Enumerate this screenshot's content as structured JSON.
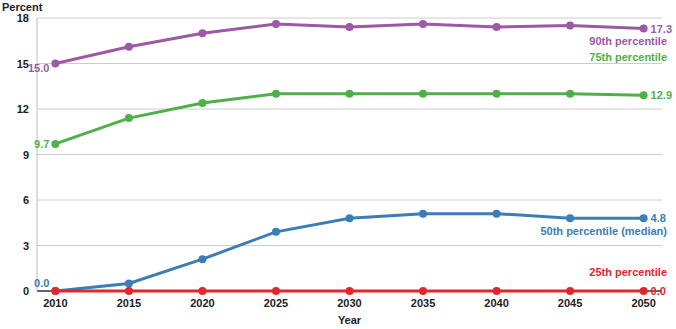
{
  "chart_data": {
    "type": "line",
    "x_label": "Year",
    "y_label": "Percent",
    "x": [
      2010,
      2015,
      2020,
      2025,
      2030,
      2035,
      2040,
      2045,
      2050
    ],
    "xlim": [
      2008.75,
      2051.25
    ],
    "xticks": [
      2010,
      2015,
      2020,
      2025,
      2030,
      2035,
      2040,
      2045,
      2050
    ],
    "ylim": [
      0,
      18
    ],
    "yticks": [
      0,
      3,
      6,
      9,
      12,
      15,
      18
    ],
    "grid": true,
    "marker": "circle",
    "data_labels": true,
    "series": [
      {
        "name": "90th percentile",
        "color": "#9b59a6",
        "values": [
          15.0,
          16.1,
          17.0,
          17.6,
          17.4,
          17.6,
          17.4,
          17.5,
          17.3
        ],
        "value_labels": [
          "15.0",
          null,
          null,
          null,
          null,
          null,
          null,
          null,
          "17.3"
        ]
      },
      {
        "name": "75th percentile",
        "color": "#4fb04a",
        "values": [
          9.7,
          11.4,
          12.4,
          13.0,
          13.0,
          13.0,
          13.0,
          13.0,
          12.9
        ],
        "value_labels": [
          "9.7",
          null,
          null,
          null,
          null,
          null,
          null,
          null,
          "12.9"
        ]
      },
      {
        "name": "50th percentile (median)",
        "color": "#3a7db8",
        "values": [
          0.0,
          0.5,
          2.1,
          3.9,
          4.8,
          5.1,
          5.1,
          4.8,
          4.8
        ],
        "value_labels": [
          "0.0",
          null,
          null,
          null,
          null,
          null,
          null,
          null,
          "4.8"
        ]
      },
      {
        "name": "25th percentile",
        "color": "#e2262c",
        "values": [
          0.0,
          0.0,
          0.0,
          0.0,
          0.0,
          0.0,
          0.0,
          0.0,
          0.0
        ],
        "value_labels": [
          null,
          null,
          null,
          null,
          null,
          null,
          null,
          null,
          "0.0"
        ]
      }
    ]
  }
}
